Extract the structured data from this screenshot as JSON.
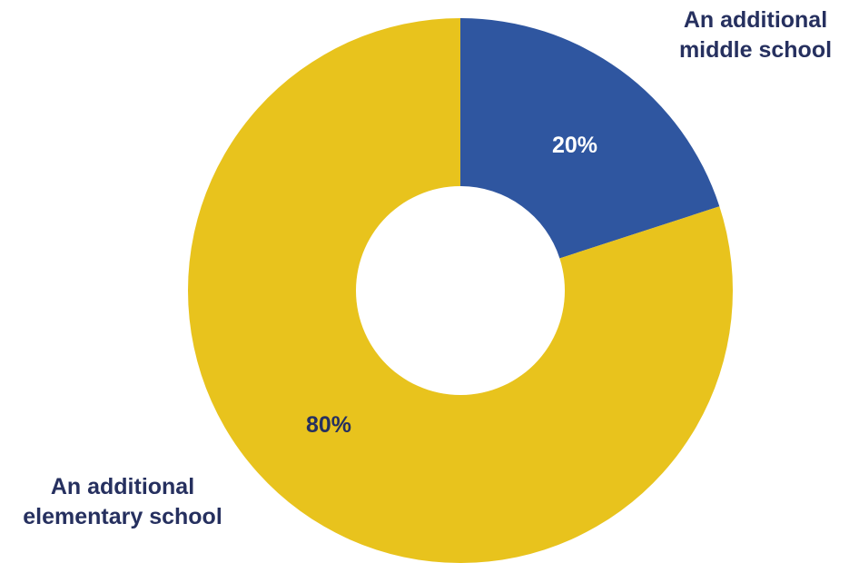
{
  "chart_data": {
    "type": "pie",
    "donut": true,
    "start": "top",
    "direction": "clockwise",
    "slices": [
      {
        "label_lines": [
          "An additional",
          "middle school"
        ],
        "value": 20,
        "value_label": "20%",
        "color": "#2f56a0"
      },
      {
        "label_lines": [
          "An additional",
          "elementary school"
        ],
        "value": 80,
        "value_label": "80%",
        "color": "#e8c31d"
      }
    ],
    "value_label_color": {
      "middle": "#ffffff",
      "elementary": "#26305f"
    }
  }
}
